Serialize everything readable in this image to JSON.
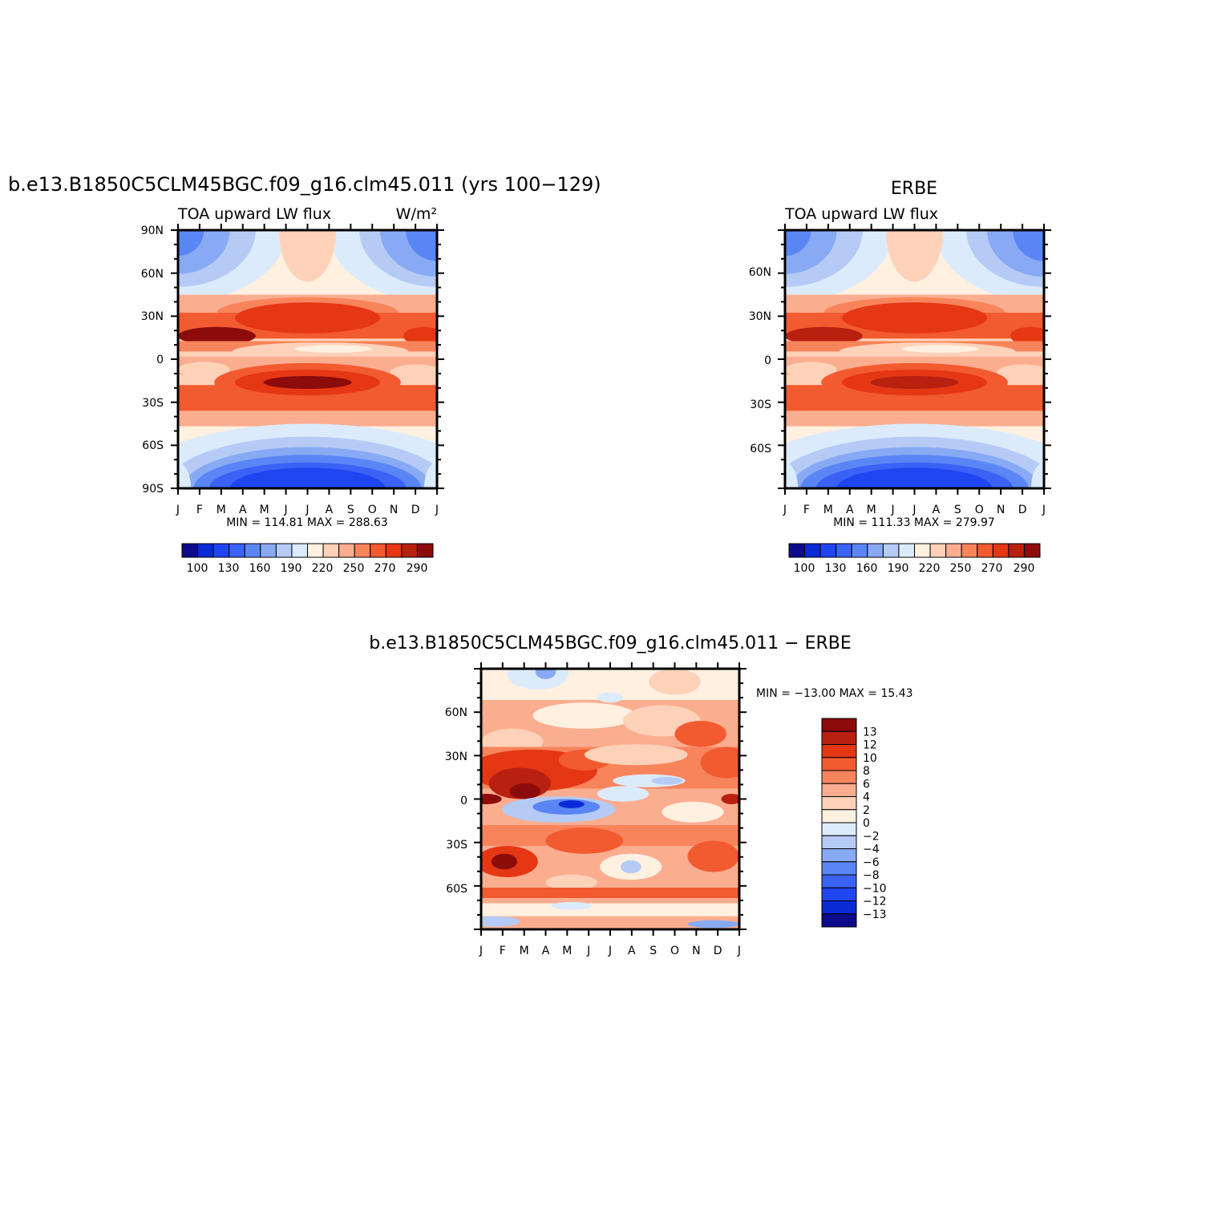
{
  "colors": {
    "abs_levels": [
      "#0b0b8c",
      "#0a2ad6",
      "#1f45f0",
      "#3a62f5",
      "#5a86f5",
      "#88aaf5",
      "#b5cbf6",
      "#dcebfb",
      "#fff0e0",
      "#fdd2b9",
      "#fbad90",
      "#f8845c",
      "#f25a30",
      "#e53713",
      "#b82010",
      "#8c0b0b"
    ],
    "diff_levels": [
      "#8c0b0b",
      "#b82010",
      "#e53713",
      "#f25a30",
      "#f8845c",
      "#fbad90",
      "#fdd2b9",
      "#fff0e0",
      "#dcebfb",
      "#b5cbf6",
      "#88aaf5",
      "#5a86f5",
      "#3a62f5",
      "#1f45f0",
      "#0a2ad6",
      "#0b0b8c"
    ]
  },
  "months": [
    "J",
    "F",
    "M",
    "A",
    "M",
    "J",
    "J",
    "A",
    "S",
    "O",
    "N",
    "D",
    "J"
  ],
  "panels": {
    "model": {
      "title": "b.e13.B1850C5CLM45BGC.f09_g16.clm45.011 (yrs 100−129)",
      "left_label": "TOA upward LW flux",
      "units": "W/m²",
      "lat_ticks": [
        "90N",
        "60N",
        "30N",
        "0",
        "30S",
        "60S",
        "90S"
      ],
      "minmax": "MIN = 114.81  MAX = 288.63",
      "min": 114.81,
      "max": 288.63
    },
    "obs": {
      "title": "ERBE",
      "left_label": "TOA upward LW flux",
      "lat_ticks": [
        "60N",
        "30N",
        "0",
        "30S",
        "60S"
      ],
      "minmax": "MIN = 111.33  MAX = 279.97",
      "min": 111.33,
      "max": 279.97
    },
    "diff": {
      "title": "b.e13.B1850C5CLM45BGC.f09_g16.clm45.011 − ERBE",
      "lat_ticks": [
        "60N",
        "30N",
        "0",
        "30S",
        "60S"
      ],
      "minmax": "MIN = −13.00  MAX =   15.43",
      "min": -13.0,
      "max": 15.43
    }
  },
  "colorbar_abs": {
    "labels": [
      "100",
      "130",
      "160",
      "190",
      "220",
      "250",
      "270",
      "290"
    ]
  },
  "colorbar_diff": {
    "labels": [
      "13",
      "12",
      "10",
      "8",
      "6",
      "4",
      "2",
      "0",
      "−2",
      "−4",
      "−6",
      "−8",
      "−10",
      "−12",
      "−13"
    ]
  },
  "chart_data": [
    {
      "type": "heatmap",
      "title": "b.e13.B1850C5CLM45BGC.f09_g16.clm45.011 (yrs 100−129)",
      "subtitle": "TOA upward LW flux",
      "units": "W/m²",
      "x": [
        "J",
        "F",
        "M",
        "A",
        "M",
        "J",
        "J",
        "A",
        "S",
        "O",
        "N",
        "D",
        "J"
      ],
      "y": [
        "90N",
        "60N",
        "30N",
        "0",
        "30S",
        "60S",
        "90S"
      ],
      "ylim": [
        -90,
        90
      ],
      "levels": [
        100,
        115,
        130,
        145,
        160,
        175,
        190,
        205,
        220,
        235,
        250,
        260,
        270,
        280,
        290
      ],
      "min": 114.81,
      "max": 288.63
    },
    {
      "type": "heatmap",
      "title": "ERBE",
      "subtitle": "TOA upward LW flux",
      "x": [
        "J",
        "F",
        "M",
        "A",
        "M",
        "J",
        "J",
        "A",
        "S",
        "O",
        "N",
        "D",
        "J"
      ],
      "y": [
        "60N",
        "30N",
        "0",
        "30S",
        "60S"
      ],
      "levels": [
        100,
        115,
        130,
        145,
        160,
        175,
        190,
        205,
        220,
        235,
        250,
        260,
        270,
        280,
        290
      ],
      "min": 111.33,
      "max": 279.97
    },
    {
      "type": "heatmap",
      "title": "b.e13.B1850C5CLM45BGC.f09_g16.clm45.011 − ERBE",
      "x": [
        "J",
        "F",
        "M",
        "A",
        "M",
        "J",
        "J",
        "A",
        "S",
        "O",
        "N",
        "D",
        "J"
      ],
      "y": [
        "60N",
        "30N",
        "0",
        "30S",
        "60S"
      ],
      "levels": [
        -13,
        -12,
        -10,
        -8,
        -6,
        -4,
        -2,
        0,
        2,
        4,
        6,
        8,
        10,
        12,
        13
      ],
      "min": -13.0,
      "max": 15.43
    }
  ]
}
